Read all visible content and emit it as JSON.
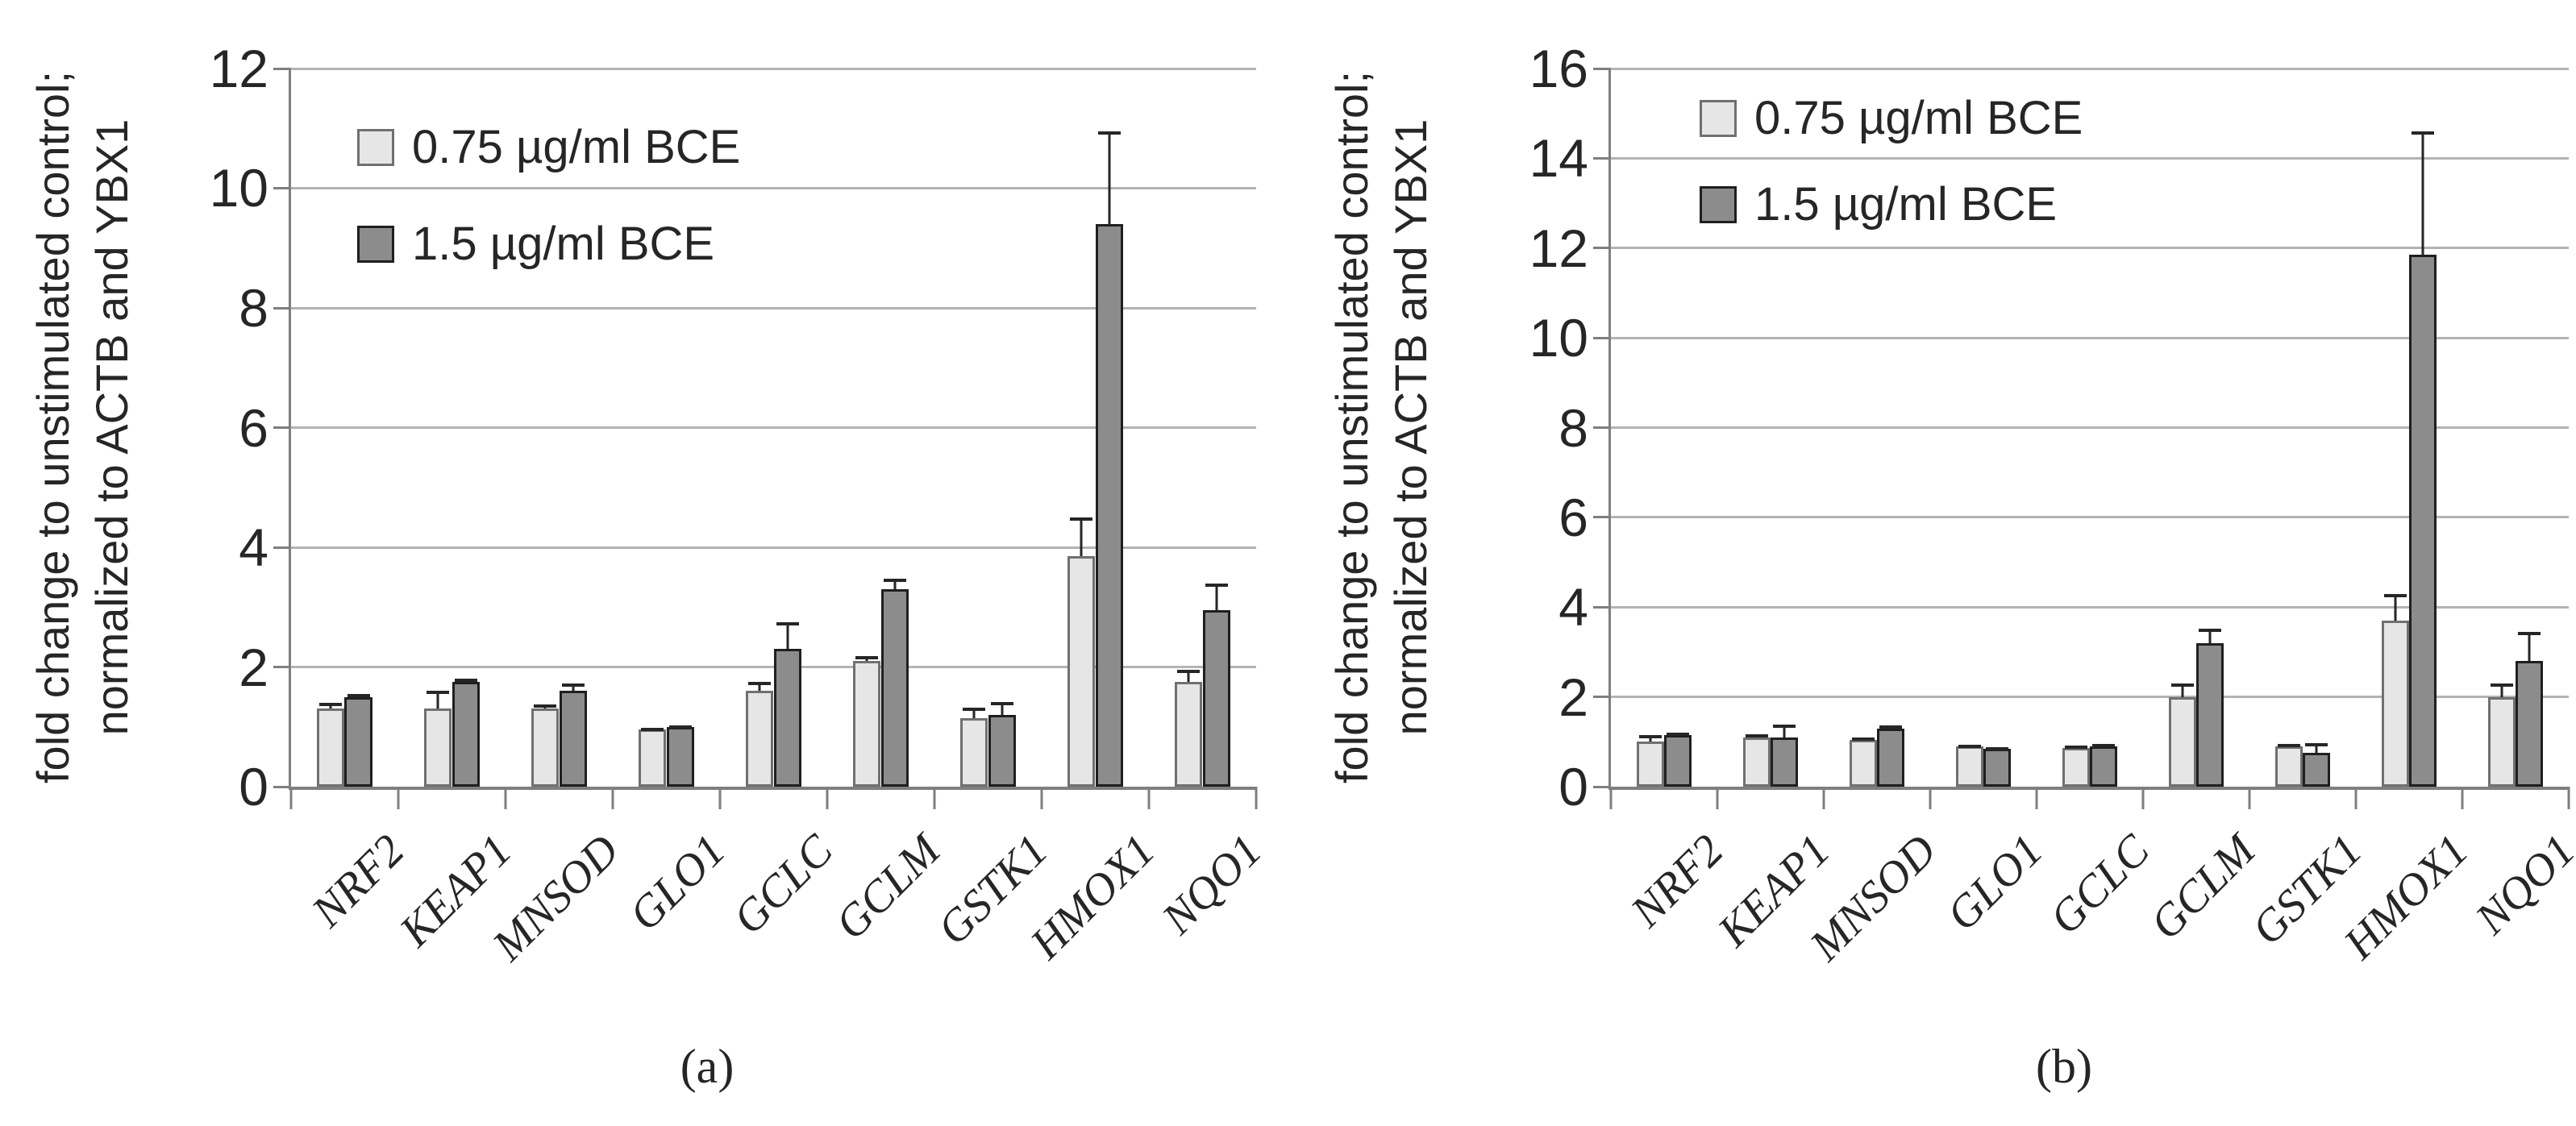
{
  "figure": {
    "y_axis_label_line1": "fold change to unstimulated control;",
    "y_axis_label_line2": "normalized to ACTB and YBX1",
    "colors": {
      "series1_fill": "#e6e6e6",
      "series1_border": "#707070",
      "series2_fill": "#8c8c8c",
      "series2_border": "#1f1f1f",
      "gridline": "#b3b3b3",
      "axis": "#7f7f7f",
      "text": "#262626",
      "error_bar": "#262626"
    }
  },
  "chart_data": [
    {
      "type": "bar",
      "panel": "a",
      "caption": "(a)",
      "title": "",
      "xlabel": "",
      "ylabel": "fold change to unstimulated control; normalized to ACTB and YBX1",
      "categories": [
        "NRF2",
        "KEAP1",
        "MNSOD",
        "GLO1",
        "GCLC",
        "GCLM",
        "GSTK1",
        "HMOX1",
        "NQO1"
      ],
      "series": [
        {
          "name": "0.75 µg/ml BCE",
          "values": [
            1.3,
            1.3,
            1.3,
            0.95,
            1.6,
            2.1,
            1.15,
            3.85,
            1.75
          ],
          "errors_plus": [
            0.1,
            0.3,
            0.07,
            0.03,
            0.15,
            0.08,
            0.17,
            0.65,
            0.2
          ]
        },
        {
          "name": "1.5 µg/ml BCE",
          "values": [
            1.5,
            1.75,
            1.6,
            1.0,
            2.3,
            3.3,
            1.2,
            9.4,
            2.95
          ],
          "errors_plus": [
            0.05,
            0.05,
            0.13,
            0.03,
            0.45,
            0.17,
            0.22,
            1.55,
            0.45
          ]
        }
      ],
      "ylim": [
        0,
        12
      ],
      "yticks": [
        0,
        2,
        4,
        6,
        8,
        10,
        12
      ],
      "grid": true,
      "legend_position": "top-left-inside"
    },
    {
      "type": "bar",
      "panel": "b",
      "caption": "(b)",
      "title": "",
      "xlabel": "",
      "ylabel": "fold change to unstimulated control; normalized to ACTB and YBX1",
      "categories": [
        "NRF2",
        "KEAP1",
        "MNSOD",
        "GLO1",
        "GCLC",
        "GCLM",
        "GSTK1",
        "HMOX1",
        "NQO1"
      ],
      "series": [
        {
          "name": "0.75 µg/ml BCE",
          "values": [
            1.0,
            1.1,
            1.05,
            0.9,
            0.87,
            2.0,
            0.9,
            3.7,
            2.0
          ],
          "errors_plus": [
            0.15,
            0.07,
            0.05,
            0.03,
            0.05,
            0.3,
            0.05,
            0.6,
            0.3
          ]
        },
        {
          "name": "1.5 µg/ml BCE",
          "values": [
            1.15,
            1.1,
            1.3,
            0.85,
            0.9,
            3.2,
            0.75,
            11.85,
            2.8
          ],
          "errors_plus": [
            0.05,
            0.28,
            0.07,
            0.03,
            0.05,
            0.32,
            0.22,
            2.75,
            0.65
          ]
        }
      ],
      "ylim": [
        0,
        16
      ],
      "yticks": [
        0,
        2,
        4,
        6,
        8,
        10,
        12,
        14,
        16
      ],
      "grid": true,
      "legend_position": "top-left-inside"
    }
  ]
}
